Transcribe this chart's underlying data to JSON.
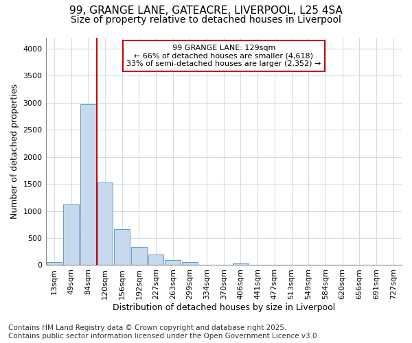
{
  "title_line1": "99, GRANGE LANE, GATEACRE, LIVERPOOL, L25 4SA",
  "title_line2": "Size of property relative to detached houses in Liverpool",
  "xlabel": "Distribution of detached houses by size in Liverpool",
  "ylabel": "Number of detached properties",
  "categories": [
    "13sqm",
    "49sqm",
    "84sqm",
    "120sqm",
    "156sqm",
    "192sqm",
    "227sqm",
    "263sqm",
    "299sqm",
    "334sqm",
    "370sqm",
    "406sqm",
    "441sqm",
    "477sqm",
    "513sqm",
    "549sqm",
    "584sqm",
    "620sqm",
    "656sqm",
    "691sqm",
    "727sqm"
  ],
  "values": [
    55,
    1120,
    2975,
    1530,
    665,
    330,
    200,
    95,
    60,
    0,
    0,
    30,
    0,
    0,
    0,
    0,
    0,
    0,
    0,
    0,
    0
  ],
  "bar_color": "#c6d9ed",
  "bar_edge_color": "#6699cc",
  "vline_x_index": 3,
  "vline_color": "#cc0000",
  "annotation_text": "99 GRANGE LANE: 129sqm\n← 66% of detached houses are smaller (4,618)\n33% of semi-detached houses are larger (2,352) →",
  "annotation_box_color": "#ffffff",
  "annotation_box_edge": "#cc0000",
  "ylim": [
    0,
    4200
  ],
  "yticks": [
    0,
    500,
    1000,
    1500,
    2000,
    2500,
    3000,
    3500,
    4000
  ],
  "background_color": "#ffffff",
  "grid_color": "#d0dce8",
  "footnote": "Contains HM Land Registry data © Crown copyright and database right 2025.\nContains public sector information licensed under the Open Government Licence v3.0.",
  "title_fontsize": 11,
  "subtitle_fontsize": 10,
  "axis_label_fontsize": 9,
  "tick_fontsize": 8,
  "footnote_fontsize": 7.5
}
